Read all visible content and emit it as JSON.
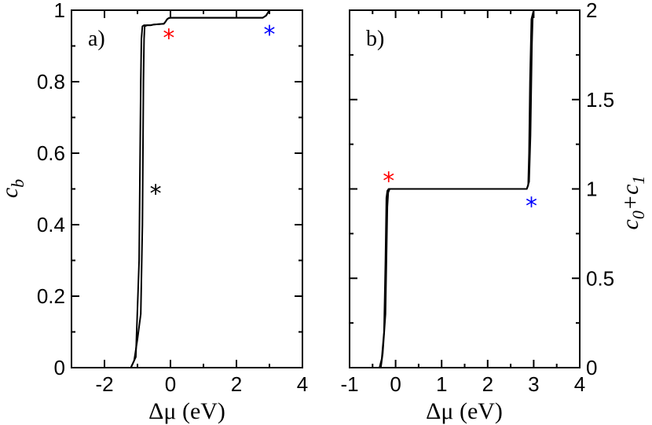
{
  "chart_data": [
    {
      "type": "line",
      "panel_label": "a)",
      "xlabel": "Δμ (eV)",
      "ylabel": "c",
      "ylabel_sub": "b",
      "xlim": [
        -3,
        4
      ],
      "ylim": [
        0,
        1
      ],
      "xticks": [
        -2,
        0,
        2,
        4
      ],
      "yticks": [
        0,
        0.2,
        0.4,
        0.6,
        0.8,
        1
      ],
      "xtick_labels": [
        "-2",
        "0",
        "2",
        "4"
      ],
      "ytick_labels": [
        "0",
        "0.2",
        "0.4",
        "0.6",
        "0.8",
        "1"
      ],
      "grid": false,
      "series": [
        {
          "x": [
            -1.2,
            -1.1,
            -1.0,
            -0.9,
            -0.85,
            -0.82,
            -0.8,
            -0.78,
            -0.7,
            -0.6,
            -0.5,
            -0.2,
            -0.15,
            -0.1,
            -0.05,
            0.0,
            0.3,
            1.0,
            2.0,
            2.8,
            2.9,
            3.0,
            4.0
          ],
          "y": [
            0.0,
            0.02,
            0.08,
            0.15,
            0.4,
            0.8,
            0.92,
            0.955,
            0.958,
            0.958,
            0.96,
            0.962,
            0.968,
            0.975,
            0.978,
            0.979,
            0.979,
            0.979,
            0.979,
            0.979,
            0.985,
            1.0,
            1.0
          ]
        },
        {
          "x": [
            -1.2,
            -1.05,
            -0.95,
            -0.9,
            -0.88,
            -0.85,
            -0.8,
            -0.7,
            -0.6,
            -0.5,
            -0.2,
            -0.15,
            -0.1,
            -0.05,
            0.0,
            0.3,
            1.0,
            2.0,
            2.8,
            2.9,
            3.0,
            4.0
          ],
          "y": [
            0.0,
            0.03,
            0.3,
            0.8,
            0.92,
            0.955,
            0.958,
            0.958,
            0.958,
            0.96,
            0.962,
            0.968,
            0.975,
            0.978,
            0.979,
            0.979,
            0.979,
            0.979,
            0.979,
            0.985,
            1.0,
            1.0
          ]
        }
      ],
      "markers": [
        {
          "symbol": "*",
          "x": -0.45,
          "y": 0.5,
          "color": "#000000"
        },
        {
          "symbol": "*",
          "x": -0.05,
          "y": 0.935,
          "color": "#ff0000"
        },
        {
          "symbol": "*",
          "x": 3.0,
          "y": 0.945,
          "color": "#0000ff"
        }
      ]
    },
    {
      "type": "line",
      "panel_label": "b)",
      "xlabel": "Δμ (eV)",
      "ylabel": "c",
      "ylabel_sub0": "0",
      "ylabel_plus": "+c",
      "ylabel_sub1": "1",
      "xlim": [
        -1,
        4
      ],
      "ylim": [
        0,
        2
      ],
      "xticks": [
        -1,
        0,
        1,
        2,
        3,
        4
      ],
      "yticks": [
        0,
        0.5,
        1,
        1.5,
        2
      ],
      "xtick_labels": [
        "-1",
        "0",
        "1",
        "2",
        "3",
        "4"
      ],
      "ytick_labels": [
        "0",
        "0.5",
        "1",
        "1.5",
        "2"
      ],
      "grid": false,
      "series": [
        {
          "x": [
            -0.35,
            -0.3,
            -0.25,
            -0.22,
            -0.2,
            -0.18,
            -0.15,
            0.0,
            1.0,
            2.0,
            2.85,
            2.88,
            2.9,
            2.92,
            2.95,
            3.0,
            3.5,
            4.0
          ],
          "y": [
            0.0,
            0.05,
            0.2,
            0.6,
            0.95,
            0.99,
            1.0,
            1.0,
            1.0,
            1.0,
            1.0,
            1.02,
            1.2,
            1.6,
            1.95,
            2.0,
            2.0,
            2.0
          ]
        },
        {
          "x": [
            -0.32,
            -0.28,
            -0.22,
            -0.18,
            -0.16,
            -0.13,
            0.0,
            1.0,
            2.0,
            2.85,
            2.9,
            2.93,
            2.96,
            2.98,
            3.0,
            3.5,
            4.0
          ],
          "y": [
            0.0,
            0.08,
            0.3,
            0.9,
            0.98,
            1.0,
            1.0,
            1.0,
            1.0,
            1.0,
            1.04,
            1.3,
            1.8,
            1.97,
            2.0,
            2.0,
            2.0
          ]
        }
      ],
      "markers": [
        {
          "symbol": "*",
          "x": -0.15,
          "y": 1.07,
          "color": "#ff0000"
        },
        {
          "symbol": "*",
          "x": 2.95,
          "y": 0.93,
          "color": "#0000ff"
        }
      ]
    }
  ]
}
